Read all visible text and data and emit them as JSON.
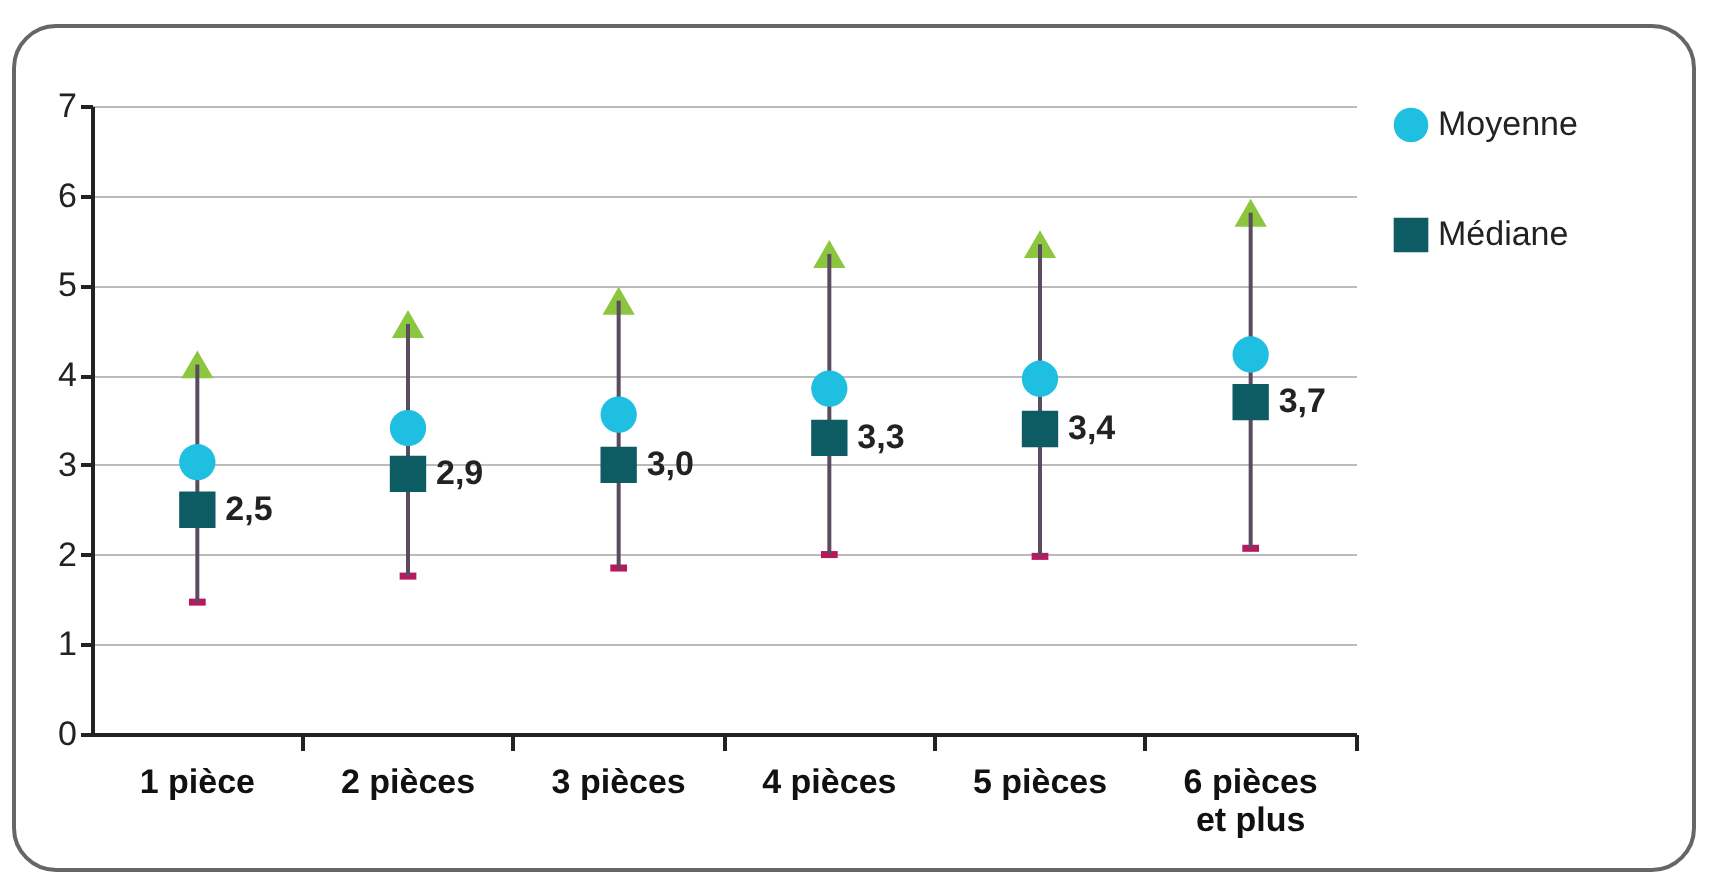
{
  "chart_data": {
    "type": "scatter",
    "categories": [
      "1 pièce",
      "2 pièces",
      "3 pièces",
      "4 pièces",
      "5 pièces",
      "6 pièces et plus"
    ],
    "series": [
      {
        "color": "#b5195e",
        "marker": "square",
        "values": [
          1.47,
          1.76,
          1.85,
          2.0,
          1.98,
          2.07
        ]
      },
      {
        "color": "#8cc63f",
        "marker": "triangle",
        "values": [
          4.12,
          4.57,
          4.83,
          5.35,
          5.46,
          5.81
        ]
      },
      {
        "name": "Moyenne",
        "color": "#1ebfe0",
        "marker": "circle",
        "values": [
          3.03,
          3.41,
          3.56,
          3.85,
          3.96,
          4.23
        ]
      },
      {
        "name": "Médiane",
        "color": "#0d5c63",
        "marker": "square",
        "values": [
          2.5,
          2.9,
          3.0,
          3.3,
          3.4,
          3.7
        ],
        "value_labels": [
          "2,5",
          "2,9",
          "3,0",
          "3,3",
          "3,4",
          "3,7"
        ]
      }
    ],
    "ylim": [
      0,
      7
    ],
    "yticks": [
      0,
      1,
      2,
      3,
      4,
      5,
      6,
      7
    ],
    "grid": "y",
    "legend": "right"
  }
}
